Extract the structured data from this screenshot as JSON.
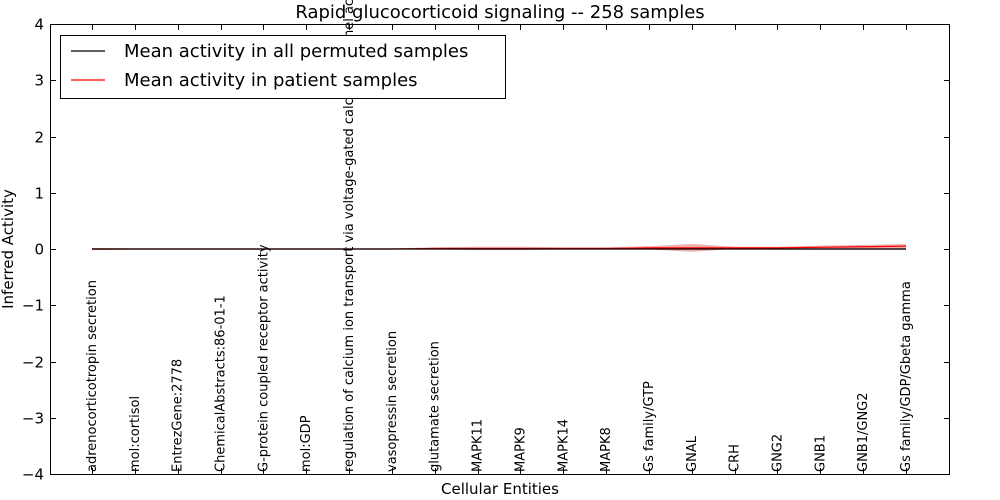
{
  "chart_data": {
    "type": "line",
    "title": "Rapid glucocorticoid signaling -- 258 samples",
    "xlabel": "Cellular Entities",
    "ylabel": "Inferred Activity",
    "ylim": [
      -4,
      4
    ],
    "yticks": [
      -4,
      -3,
      -2,
      -1,
      0,
      1,
      2,
      3,
      4
    ],
    "ytick_labels": [
      "−4",
      "−3",
      "−2",
      "−1",
      "0",
      "1",
      "2",
      "3",
      "4"
    ],
    "categories": [
      "adrenocorticotropin secretion",
      "mol:cortisol",
      "EntrezGene:2778",
      "ChemicalAbstracts:86-01-1",
      "G-protein coupled receptor activity",
      "mol:GDP",
      "regulation of calcium ion transport via voltage-gated calcium channel activity",
      "vasopressin secretion",
      "glutamate secretion",
      "MAPK11",
      "MAPK9",
      "MAPK14",
      "MAPK8",
      "Gs family/GTP",
      "GNAL",
      "CRH",
      "GNG2",
      "GNB1",
      "GNB1/GNG2",
      "Gs family/GDP/Gbeta gamma"
    ],
    "series": [
      {
        "name": "Mean activity in all permuted samples",
        "color": "#000000",
        "values": [
          0,
          0,
          0,
          0,
          0,
          0,
          0,
          0,
          0,
          0,
          0,
          0,
          0,
          0,
          0,
          0,
          0,
          0,
          0,
          0
        ],
        "band": [
          0.01,
          0.01,
          0.01,
          0.01,
          0.01,
          0.01,
          0.01,
          0.01,
          0.01,
          0.01,
          0.01,
          0.01,
          0.01,
          0.01,
          0.01,
          0.01,
          0.02,
          0.02,
          0.02,
          0.02
        ]
      },
      {
        "name": "Mean activity in patient samples",
        "color": "#ff0000",
        "values": [
          0.0,
          0.0,
          0.0,
          0.0,
          0.0,
          0.0,
          0.0,
          0.0,
          0.01,
          0.01,
          0.01,
          0.01,
          0.01,
          0.02,
          0.02,
          0.02,
          0.02,
          0.03,
          0.04,
          0.05
        ],
        "band": [
          0.02,
          0.01,
          0.01,
          0.01,
          0.01,
          0.01,
          0.01,
          0.01,
          0.02,
          0.03,
          0.03,
          0.02,
          0.02,
          0.03,
          0.07,
          0.02,
          0.02,
          0.03,
          0.03,
          0.04
        ]
      }
    ],
    "legend_location": "top-left",
    "grid": false
  }
}
